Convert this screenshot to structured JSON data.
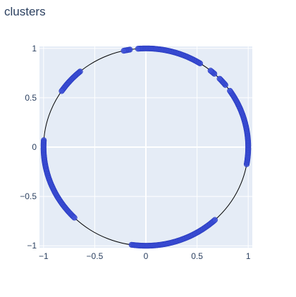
{
  "chart_data": {
    "type": "scatter",
    "title": "clusters",
    "xlabel": "",
    "ylabel": "",
    "xlim": [
      -1.04,
      1.04
    ],
    "ylim": [
      -1.02,
      1.02
    ],
    "x_ticks": [
      -1,
      -0.5,
      0,
      0.5,
      1
    ],
    "x_tick_labels": [
      "−1",
      "−0.5",
      "0",
      "0.5",
      "1"
    ],
    "y_ticks": [
      -1,
      -0.5,
      0,
      0.5,
      1
    ],
    "y_tick_labels": [
      "−1",
      "−0.5",
      "0",
      "0.5",
      "1"
    ],
    "grid": true,
    "legend": "none",
    "reference_circle": {
      "center": [
        0,
        0
      ],
      "radius": 1
    },
    "clusters_angle_deg": [
      {
        "from": -10,
        "to": 35
      },
      {
        "from": 39,
        "to": 44
      },
      {
        "from": 48,
        "to": 51
      },
      {
        "from": 58,
        "to": 95
      },
      {
        "from": 99,
        "to": 103
      },
      {
        "from": 130,
        "to": 146
      },
      {
        "from": 176,
        "to": 226
      },
      {
        "from": 262,
        "to": 313
      }
    ],
    "colors": {
      "plot_bg": "#e5ecf6",
      "grid": "#ffffff",
      "marker": "#3f51d8",
      "marker_edge": "#2a3cc0",
      "circle": "#000000",
      "text": "#2a3f5f"
    }
  }
}
